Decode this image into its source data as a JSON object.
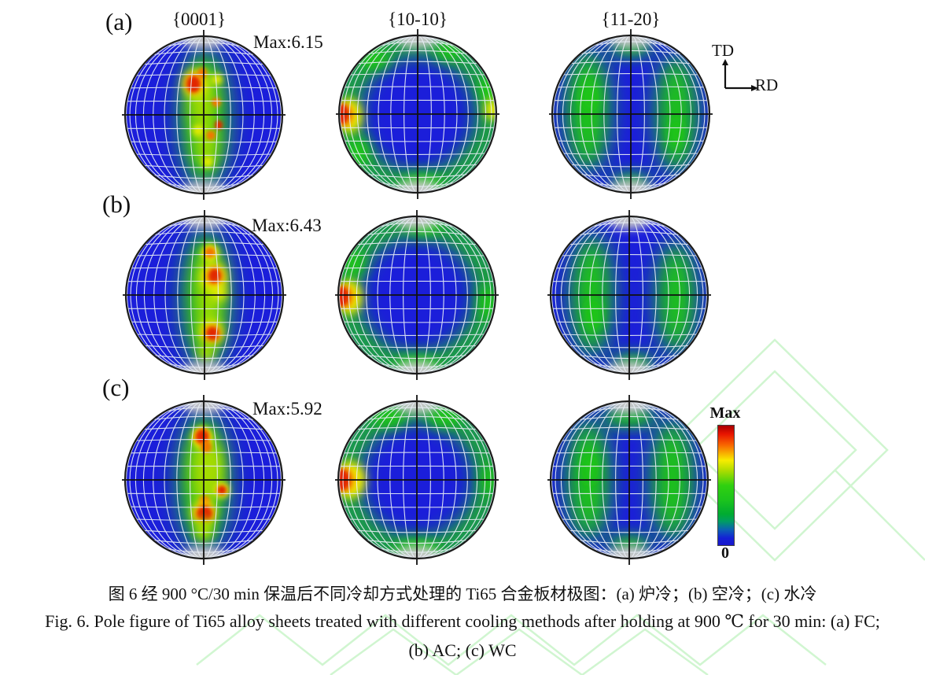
{
  "figure": {
    "panel_labels": [
      "(a)",
      "(b)",
      "(c)"
    ],
    "plane_labels": [
      "{0001}",
      "{10-10}",
      "{11-20}"
    ],
    "max_values": [
      "Max:6.15",
      "Max:6.43",
      "Max:5.92"
    ]
  },
  "axes_indicator": {
    "td": "TD",
    "rd": "RD"
  },
  "colorbar": {
    "max_label": "Max",
    "zero_label": "0",
    "stops": [
      "#a80000 0%",
      "#e81400 7%",
      "#f86400 16%",
      "#f8ec00 29%",
      "#aadc00 38%",
      "#30d010 50%",
      "#1cc41c 62%",
      "#00ab31 74%",
      "#009e62 80%",
      "#0b62b4 87%",
      "#1420d6 94%",
      "#1818cc 100%"
    ]
  },
  "captions": {
    "chinese": "图 6  经 900 °C/30 min 保温后不同冷却方式处理的 Ti65 合金板材极图：(a) 炉冷；(b) 空冷；(c) 水冷",
    "english_line1": "Fig. 6. Pole figure of Ti65 alloy sheets treated with different cooling methods after holding at 900  ℃  for 30 min: (a) FC;",
    "english_line2": "(b) AC; (c) WC"
  },
  "chart_data": {
    "type": "pole_figure_grid",
    "planes": [
      "{0001}",
      "{10-10}",
      "{11-20}"
    ],
    "rows": [
      {
        "panel": "(a)",
        "cooling_method_cn": "炉冷",
        "cooling_method_en": "FC",
        "max_intensity": 6.15
      },
      {
        "panel": "(b)",
        "cooling_method_cn": "空冷",
        "cooling_method_en": "AC",
        "max_intensity": 6.43
      },
      {
        "panel": "(c)",
        "cooling_method_cn": "水冷",
        "cooling_method_en": "WC",
        "max_intensity": 5.92
      }
    ],
    "intensity_scale": {
      "min": 0,
      "max_label": "Max"
    },
    "sample_directions": {
      "vertical": "TD",
      "horizontal": "RD"
    },
    "palette": {
      "bg": "#1b1eda",
      "g": "#1ec514",
      "yg": "#a8dc00",
      "y": "#f2ee00",
      "o": "#f07800",
      "r": "#e12800",
      "cap": "#c9c9c9",
      "grid": "#e8eef6",
      "line": "#101010",
      "border": "#1b1b1b"
    },
    "figures": [
      {
        "id": "a-0001",
        "panel": "(a)",
        "plane": "{0001}",
        "blobs": [
          {
            "x": 0.01,
            "y": 0.05,
            "rx": 0.31,
            "ry": 0.88,
            "c": "g",
            "f": "b8"
          },
          {
            "x": -0.02,
            "y": -0.18,
            "rx": 0.17,
            "ry": 0.42,
            "c": "yg",
            "f": "b6"
          },
          {
            "x": 0.03,
            "y": 0.38,
            "rx": 0.14,
            "ry": 0.3,
            "c": "yg",
            "f": "b6"
          },
          {
            "x": -0.11,
            "y": -0.4,
            "rx": 0.15,
            "ry": 0.17,
            "c": "y",
            "f": "b4"
          },
          {
            "x": -0.13,
            "y": -0.4,
            "rx": 0.11,
            "ry": 0.13,
            "c": "o",
            "f": "b3"
          },
          {
            "x": -0.13,
            "y": -0.39,
            "rx": 0.08,
            "ry": 0.1,
            "c": "r",
            "f": "b2"
          },
          {
            "x": -0.02,
            "y": -0.53,
            "rx": 0.06,
            "ry": 0.07,
            "c": "o",
            "f": "b2"
          },
          {
            "x": 0.17,
            "y": -0.45,
            "rx": 0.07,
            "ry": 0.07,
            "c": "y",
            "f": "b3"
          },
          {
            "x": 0.16,
            "y": -0.16,
            "rx": 0.06,
            "ry": 0.06,
            "c": "o",
            "f": "b2"
          },
          {
            "x": 0.19,
            "y": 0.13,
            "rx": 0.05,
            "ry": 0.06,
            "c": "r",
            "f": "b2"
          },
          {
            "x": 0.09,
            "y": 0.26,
            "rx": 0.06,
            "ry": 0.06,
            "c": "o",
            "f": "b2"
          },
          {
            "x": -0.07,
            "y": 0.2,
            "rx": 0.07,
            "ry": 0.07,
            "c": "y",
            "f": "b3"
          },
          {
            "x": 0.05,
            "y": 0.6,
            "rx": 0.07,
            "ry": 0.07,
            "c": "y",
            "f": "b3"
          }
        ]
      },
      {
        "id": "a-1010",
        "panel": "(a)",
        "plane": "{10-10}",
        "ring": {
          "r": 0.92,
          "w": 0.3,
          "c": "g",
          "f": "b8"
        },
        "blobs": [
          {
            "x": -0.55,
            "y": -0.7,
            "rx": 0.2,
            "ry": 0.14,
            "c": "g",
            "f": "b5"
          },
          {
            "x": 0.4,
            "y": -0.8,
            "rx": 0.18,
            "ry": 0.12,
            "c": "g",
            "f": "b5"
          },
          {
            "x": 0.9,
            "y": -0.32,
            "rx": 0.12,
            "ry": 0.18,
            "c": "g",
            "f": "b4"
          },
          {
            "x": 0.05,
            "y": 0.88,
            "rx": 0.28,
            "ry": 0.13,
            "c": "g",
            "f": "b5"
          },
          {
            "x": -0.76,
            "y": 0.48,
            "rx": 0.15,
            "ry": 0.2,
            "c": "g",
            "f": "b5"
          },
          {
            "x": -0.87,
            "y": 0.02,
            "rx": 0.17,
            "ry": 0.22,
            "c": "y",
            "f": "b4"
          },
          {
            "x": -0.94,
            "y": 0.01,
            "rx": 0.12,
            "ry": 0.15,
            "c": "o",
            "f": "b3"
          },
          {
            "x": -0.97,
            "y": 0.0,
            "rx": 0.09,
            "ry": 0.12,
            "c": "r",
            "f": "b2"
          },
          {
            "x": 0.95,
            "y": -0.06,
            "rx": 0.1,
            "ry": 0.14,
            "c": "y",
            "f": "b4"
          }
        ]
      },
      {
        "id": "a-1120",
        "panel": "(a)",
        "plane": "{11-20}",
        "blobs": [
          {
            "x": -0.55,
            "y": -0.05,
            "rx": 0.28,
            "ry": 0.78,
            "c": "g",
            "f": "b8"
          },
          {
            "x": 0.58,
            "y": 0.0,
            "rx": 0.26,
            "ry": 0.76,
            "c": "g",
            "f": "b8"
          },
          {
            "x": 0.0,
            "y": -0.85,
            "rx": 0.28,
            "ry": 0.12,
            "c": "g",
            "f": "b6"
          },
          {
            "x": 0.0,
            "y": 0.86,
            "rx": 0.26,
            "ry": 0.11,
            "c": "g",
            "f": "b6"
          },
          {
            "x": -0.52,
            "y": -0.2,
            "rx": 0.12,
            "ry": 0.2,
            "c": "g",
            "f": "b4"
          },
          {
            "x": 0.58,
            "y": 0.25,
            "rx": 0.1,
            "ry": 0.18,
            "c": "g",
            "f": "b4"
          }
        ]
      },
      {
        "id": "b-0001",
        "panel": "(b)",
        "plane": "{0001}",
        "blobs": [
          {
            "x": 0.02,
            "y": 0.05,
            "rx": 0.3,
            "ry": 0.88,
            "c": "g",
            "f": "b8"
          },
          {
            "x": 0.05,
            "y": -0.1,
            "rx": 0.16,
            "ry": 0.48,
            "c": "yg",
            "f": "b6"
          },
          {
            "x": 0.05,
            "y": 0.45,
            "rx": 0.13,
            "ry": 0.25,
            "c": "yg",
            "f": "b6"
          },
          {
            "x": 0.07,
            "y": -0.54,
            "rx": 0.11,
            "ry": 0.11,
            "c": "y",
            "f": "b3"
          },
          {
            "x": 0.07,
            "y": -0.54,
            "rx": 0.07,
            "ry": 0.07,
            "c": "o",
            "f": "b2"
          },
          {
            "x": 0.12,
            "y": -0.23,
            "rx": 0.16,
            "ry": 0.17,
            "c": "y",
            "f": "b4"
          },
          {
            "x": 0.13,
            "y": -0.24,
            "rx": 0.11,
            "ry": 0.12,
            "c": "o",
            "f": "b3"
          },
          {
            "x": 0.13,
            "y": -0.24,
            "rx": 0.07,
            "ry": 0.09,
            "c": "r",
            "f": "b2"
          },
          {
            "x": 0.19,
            "y": -0.03,
            "rx": 0.09,
            "ry": 0.11,
            "c": "y",
            "f": "b4"
          },
          {
            "x": 0.09,
            "y": 0.47,
            "rx": 0.14,
            "ry": 0.14,
            "c": "y",
            "f": "b4"
          },
          {
            "x": 0.1,
            "y": 0.49,
            "rx": 0.11,
            "ry": 0.11,
            "c": "o",
            "f": "b3"
          },
          {
            "x": 0.1,
            "y": 0.49,
            "rx": 0.07,
            "ry": 0.08,
            "c": "r",
            "f": "b2"
          },
          {
            "x": 0.02,
            "y": 0.73,
            "rx": 0.1,
            "ry": 0.11,
            "c": "yg",
            "f": "b4"
          }
        ]
      },
      {
        "id": "b-1010",
        "panel": "(b)",
        "plane": "{10-10}",
        "ring": {
          "r": 0.92,
          "w": 0.3,
          "c": "g",
          "f": "b8"
        },
        "blobs": [
          {
            "x": 0.1,
            "y": -0.87,
            "rx": 0.22,
            "ry": 0.12,
            "c": "g",
            "f": "b5"
          },
          {
            "x": 0.0,
            "y": 0.88,
            "rx": 0.28,
            "ry": 0.12,
            "c": "g",
            "f": "b5"
          },
          {
            "x": 0.9,
            "y": 0.1,
            "rx": 0.12,
            "ry": 0.22,
            "c": "g",
            "f": "b5"
          },
          {
            "x": -0.8,
            "y": -0.4,
            "rx": 0.14,
            "ry": 0.18,
            "c": "g",
            "f": "b5"
          },
          {
            "x": -0.86,
            "y": 0.03,
            "rx": 0.17,
            "ry": 0.22,
            "c": "y",
            "f": "b4"
          },
          {
            "x": -0.93,
            "y": 0.02,
            "rx": 0.12,
            "ry": 0.15,
            "c": "o",
            "f": "b3"
          },
          {
            "x": -0.96,
            "y": 0.02,
            "rx": 0.09,
            "ry": 0.12,
            "c": "r",
            "f": "b2"
          }
        ]
      },
      {
        "id": "b-1120",
        "panel": "(b)",
        "plane": "{11-20}",
        "blobs": [
          {
            "x": -0.48,
            "y": 0.0,
            "rx": 0.26,
            "ry": 0.78,
            "c": "g",
            "f": "b8"
          },
          {
            "x": 0.6,
            "y": 0.04,
            "rx": 0.25,
            "ry": 0.72,
            "c": "g",
            "f": "b8"
          },
          {
            "x": 0.05,
            "y": 0.86,
            "rx": 0.28,
            "ry": 0.12,
            "c": "g",
            "f": "b6"
          },
          {
            "x": -0.45,
            "y": 0.25,
            "rx": 0.11,
            "ry": 0.2,
            "c": "g",
            "f": "b4"
          }
        ]
      },
      {
        "id": "c-0001",
        "panel": "(c)",
        "plane": "{0001}",
        "blobs": [
          {
            "x": 0.0,
            "y": 0.03,
            "rx": 0.32,
            "ry": 0.88,
            "c": "g",
            "f": "b8"
          },
          {
            "x": 0.02,
            "y": -0.12,
            "rx": 0.19,
            "ry": 0.5,
            "c": "yg",
            "f": "b6"
          },
          {
            "x": 0.12,
            "y": -0.15,
            "rx": 0.1,
            "ry": 0.26,
            "c": "yg",
            "f": "b5"
          },
          {
            "x": -0.02,
            "y": -0.54,
            "rx": 0.13,
            "ry": 0.14,
            "c": "y",
            "f": "b3"
          },
          {
            "x": -0.02,
            "y": -0.55,
            "rx": 0.1,
            "ry": 0.11,
            "c": "o",
            "f": "b2"
          },
          {
            "x": -0.02,
            "y": -0.55,
            "rx": 0.07,
            "ry": 0.08,
            "c": "r",
            "f": "b2"
          },
          {
            "x": 0.03,
            "y": -0.42,
            "rx": 0.07,
            "ry": 0.08,
            "c": "o",
            "f": "b2"
          },
          {
            "x": 0.23,
            "y": 0.13,
            "rx": 0.1,
            "ry": 0.1,
            "c": "y",
            "f": "b3"
          },
          {
            "x": 0.23,
            "y": 0.13,
            "rx": 0.06,
            "ry": 0.06,
            "c": "r",
            "f": "b2"
          },
          {
            "x": 0.01,
            "y": 0.27,
            "rx": 0.07,
            "ry": 0.07,
            "c": "o",
            "f": "b2"
          },
          {
            "x": 0.0,
            "y": 0.42,
            "rx": 0.16,
            "ry": 0.15,
            "c": "y",
            "f": "b4"
          },
          {
            "x": 0.01,
            "y": 0.43,
            "rx": 0.12,
            "ry": 0.12,
            "c": "o",
            "f": "b3"
          },
          {
            "x": 0.01,
            "y": 0.43,
            "rx": 0.09,
            "ry": 0.09,
            "c": "r",
            "f": "b2"
          },
          {
            "x": 0.0,
            "y": 0.63,
            "rx": 0.12,
            "ry": 0.14,
            "c": "yg",
            "f": "b4"
          }
        ]
      },
      {
        "id": "c-1010",
        "panel": "(c)",
        "plane": "{10-10}",
        "ring": {
          "r": 0.92,
          "w": 0.3,
          "c": "g",
          "f": "b8"
        },
        "blobs": [
          {
            "x": -0.35,
            "y": -0.8,
            "rx": 0.22,
            "ry": 0.14,
            "c": "g",
            "f": "b5"
          },
          {
            "x": 0.35,
            "y": -0.8,
            "rx": 0.22,
            "ry": 0.14,
            "c": "g",
            "f": "b5"
          },
          {
            "x": 0.0,
            "y": 0.87,
            "rx": 0.28,
            "ry": 0.13,
            "c": "g",
            "f": "b5"
          },
          {
            "x": 0.92,
            "y": 0.0,
            "rx": 0.1,
            "ry": 0.2,
            "c": "g",
            "f": "b5"
          },
          {
            "x": -0.85,
            "y": 0.0,
            "rx": 0.2,
            "ry": 0.24,
            "c": "y",
            "f": "b4"
          },
          {
            "x": -0.93,
            "y": 0.0,
            "rx": 0.13,
            "ry": 0.16,
            "c": "o",
            "f": "b3"
          },
          {
            "x": -0.96,
            "y": 0.0,
            "rx": 0.1,
            "ry": 0.13,
            "c": "r",
            "f": "b2"
          }
        ]
      },
      {
        "id": "c-1120",
        "panel": "(c)",
        "plane": "{11-20}",
        "blobs": [
          {
            "x": -0.52,
            "y": 0.0,
            "rx": 0.27,
            "ry": 0.78,
            "c": "g",
            "f": "b8"
          },
          {
            "x": 0.55,
            "y": 0.0,
            "rx": 0.27,
            "ry": 0.78,
            "c": "g",
            "f": "b8"
          },
          {
            "x": 0.0,
            "y": -0.8,
            "rx": 0.34,
            "ry": 0.14,
            "c": "g",
            "f": "b6"
          },
          {
            "x": 0.0,
            "y": 0.82,
            "rx": 0.28,
            "ry": 0.12,
            "c": "g",
            "f": "b6"
          },
          {
            "x": -0.5,
            "y": -0.15,
            "rx": 0.11,
            "ry": 0.2,
            "c": "g",
            "f": "b4"
          }
        ]
      }
    ]
  }
}
